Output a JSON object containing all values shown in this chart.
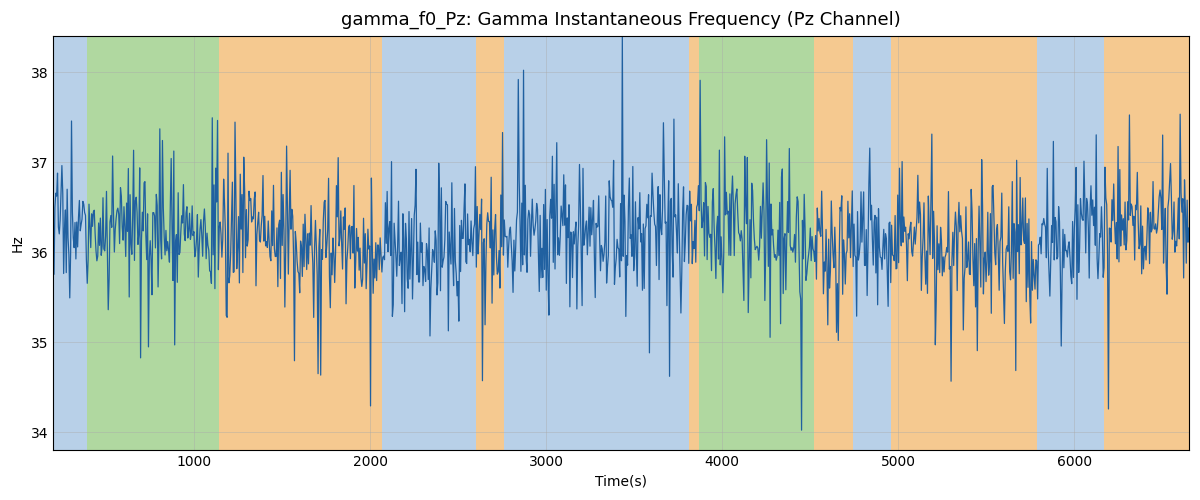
{
  "title": "gamma_f0_Pz: Gamma Instantaneous Frequency (Pz Channel)",
  "xlabel": "Time(s)",
  "ylabel": "Hz",
  "xlim": [
    200,
    6650
  ],
  "ylim": [
    33.8,
    38.4
  ],
  "yticks": [
    34,
    35,
    36,
    37,
    38
  ],
  "xticks": [
    1000,
    2000,
    3000,
    4000,
    5000,
    6000
  ],
  "line_color": "#2060a0",
  "line_width": 0.9,
  "bg_regions": [
    {
      "xmin": 200,
      "xmax": 390,
      "color": "#b8d0e8"
    },
    {
      "xmin": 390,
      "xmax": 1140,
      "color": "#b0d8a0"
    },
    {
      "xmin": 1140,
      "xmax": 2070,
      "color": "#f5c990"
    },
    {
      "xmin": 2070,
      "xmax": 2600,
      "color": "#b8d0e8"
    },
    {
      "xmin": 2600,
      "xmax": 2760,
      "color": "#f5c990"
    },
    {
      "xmin": 2760,
      "xmax": 3810,
      "color": "#b8d0e8"
    },
    {
      "xmin": 3810,
      "xmax": 3870,
      "color": "#f5c990"
    },
    {
      "xmin": 3870,
      "xmax": 4520,
      "color": "#b0d8a0"
    },
    {
      "xmin": 4520,
      "xmax": 4740,
      "color": "#f5c990"
    },
    {
      "xmin": 4740,
      "xmax": 4960,
      "color": "#b8d0e8"
    },
    {
      "xmin": 4960,
      "xmax": 5790,
      "color": "#f5c990"
    },
    {
      "xmin": 5790,
      "xmax": 6170,
      "color": "#b8d0e8"
    },
    {
      "xmin": 6170,
      "xmax": 6650,
      "color": "#f5c990"
    }
  ],
  "figsize": [
    12.0,
    5.0
  ],
  "dpi": 100,
  "title_fontsize": 13,
  "seed": 17,
  "n_points": 1300,
  "t_start": 200,
  "t_end": 6650,
  "base_freq": 36.15,
  "noise_scale": 0.3
}
